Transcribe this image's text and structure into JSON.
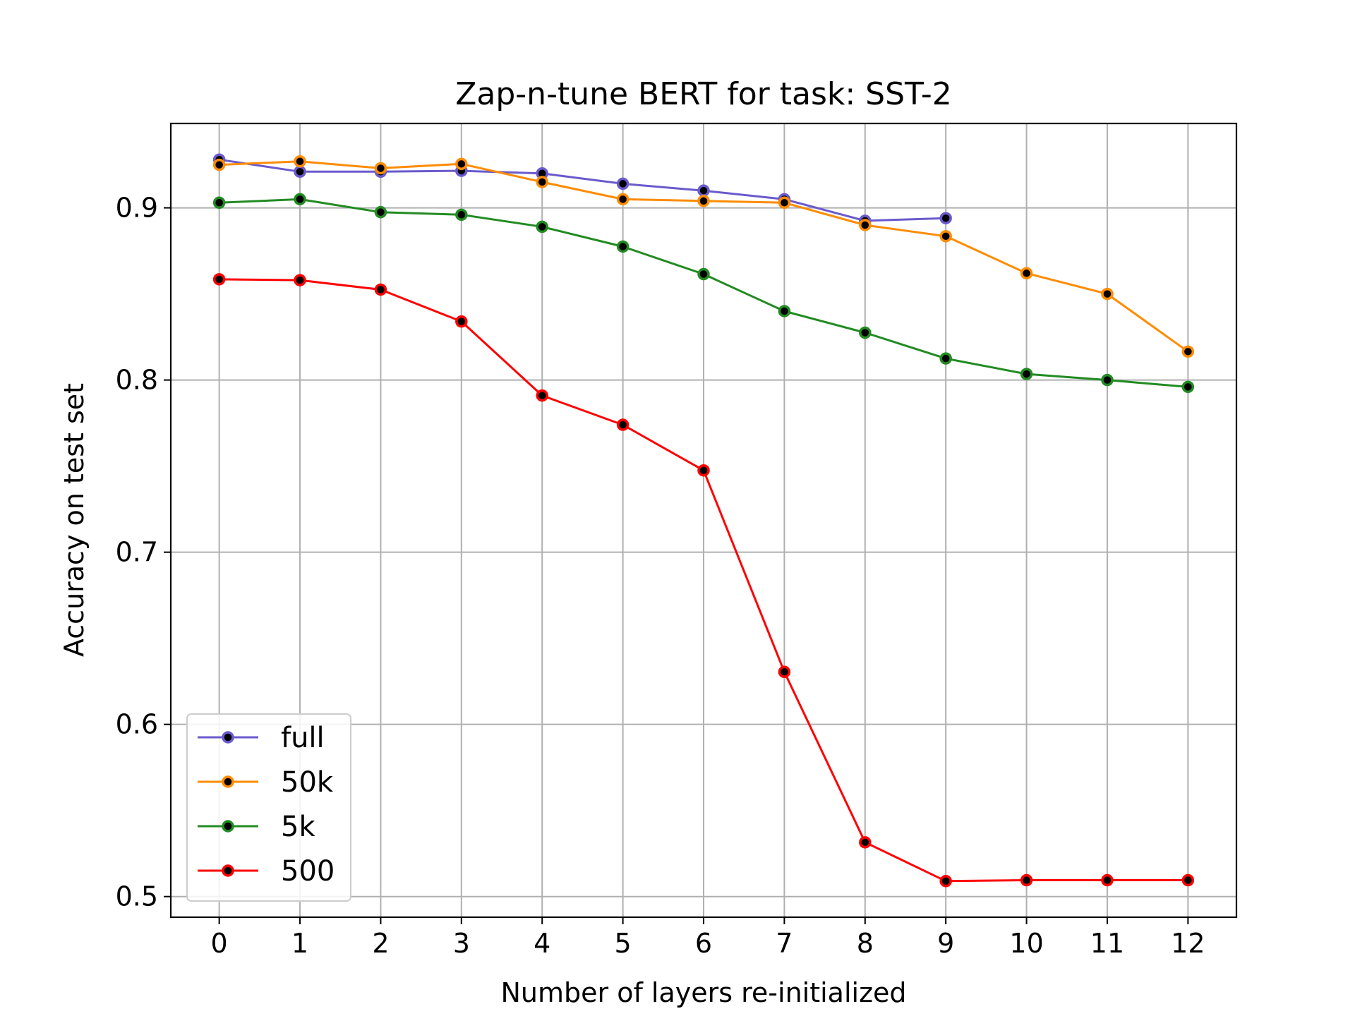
{
  "chart_data": {
    "type": "line",
    "title": "Zap-n-tune BERT for task: SST-2",
    "xlabel": "Number of layers re-initialized",
    "ylabel": "Accuracy on test set",
    "xlim": [
      -0.6,
      12.6
    ],
    "ylim": [
      0.488,
      0.949
    ],
    "x_ticks": [
      0,
      1,
      2,
      3,
      4,
      5,
      6,
      7,
      8,
      9,
      10,
      11,
      12
    ],
    "x_tick_labels": [
      "0",
      "1",
      "2",
      "3",
      "4",
      "5",
      "6",
      "7",
      "8",
      "9",
      "10",
      "11",
      "12"
    ],
    "y_ticks": [
      0.5,
      0.6,
      0.7,
      0.8,
      0.9
    ],
    "y_tick_labels": [
      "0.5",
      "0.6",
      "0.7",
      "0.8",
      "0.9"
    ],
    "grid": true,
    "legend_position": "lower-left",
    "series": [
      {
        "name": "full",
        "color": "#6a5acd",
        "x": [
          0,
          1,
          2,
          3,
          4,
          5,
          6,
          7,
          8,
          9
        ],
        "values": [
          0.928,
          0.921,
          0.921,
          0.9215,
          0.92,
          0.914,
          0.91,
          0.905,
          0.8925,
          0.894
        ]
      },
      {
        "name": "50k",
        "color": "#ff8c00",
        "x": [
          0,
          1,
          2,
          3,
          4,
          5,
          6,
          7,
          8,
          9,
          10,
          11,
          12
        ],
        "values": [
          0.925,
          0.927,
          0.923,
          0.9255,
          0.915,
          0.905,
          0.904,
          0.903,
          0.89,
          0.8835,
          0.862,
          0.85,
          0.8165
        ]
      },
      {
        "name": "5k",
        "color": "#228b22",
        "x": [
          0,
          1,
          2,
          3,
          4,
          5,
          6,
          7,
          8,
          9,
          10,
          11,
          12
        ],
        "values": [
          0.903,
          0.905,
          0.8975,
          0.896,
          0.889,
          0.8775,
          0.8615,
          0.84,
          0.8275,
          0.8125,
          0.8035,
          0.8,
          0.796
        ]
      },
      {
        "name": "500",
        "color": "#ff0000",
        "x": [
          0,
          1,
          2,
          3,
          4,
          5,
          6,
          7,
          8,
          9,
          10,
          11,
          12
        ],
        "values": [
          0.8585,
          0.858,
          0.8525,
          0.834,
          0.791,
          0.774,
          0.7475,
          0.6305,
          0.5315,
          0.509,
          0.5095,
          0.5095,
          0.5095
        ]
      }
    ]
  }
}
